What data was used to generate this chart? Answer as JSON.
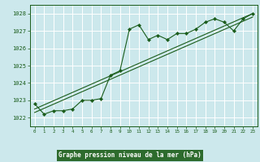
{
  "title": "Graphe pression niveau de la mer (hPa)",
  "bg_color": "#cce8ec",
  "grid_color": "#ffffff",
  "line_color": "#1a5c1a",
  "label_bg": "#2d6b2d",
  "label_fg": "#ffffff",
  "xlim": [
    -0.5,
    23.5
  ],
  "ylim": [
    1021.5,
    1028.5
  ],
  "yticks": [
    1022,
    1023,
    1024,
    1025,
    1026,
    1027,
    1028
  ],
  "xticks": [
    0,
    1,
    2,
    3,
    4,
    5,
    6,
    7,
    8,
    9,
    10,
    11,
    12,
    13,
    14,
    15,
    16,
    17,
    18,
    19,
    20,
    21,
    22,
    23
  ],
  "main_x": [
    0,
    1,
    2,
    3,
    4,
    5,
    6,
    7,
    8,
    9,
    10,
    11,
    12,
    13,
    14,
    15,
    16,
    17,
    18,
    19,
    20,
    21,
    22,
    23
  ],
  "main_y": [
    1022.8,
    1022.2,
    1022.4,
    1022.4,
    1022.5,
    1023.0,
    1023.0,
    1023.1,
    1024.45,
    1024.7,
    1027.1,
    1027.35,
    1026.5,
    1026.75,
    1026.5,
    1026.85,
    1026.85,
    1027.1,
    1027.5,
    1027.7,
    1027.5,
    1027.0,
    1027.7,
    1028.0
  ],
  "trend1_x": [
    0,
    23
  ],
  "trend1_y": [
    1022.5,
    1028.0
  ],
  "trend2_x": [
    0,
    23
  ],
  "trend2_y": [
    1022.3,
    1027.8
  ],
  "figsize": [
    3.2,
    2.0
  ],
  "dpi": 100
}
